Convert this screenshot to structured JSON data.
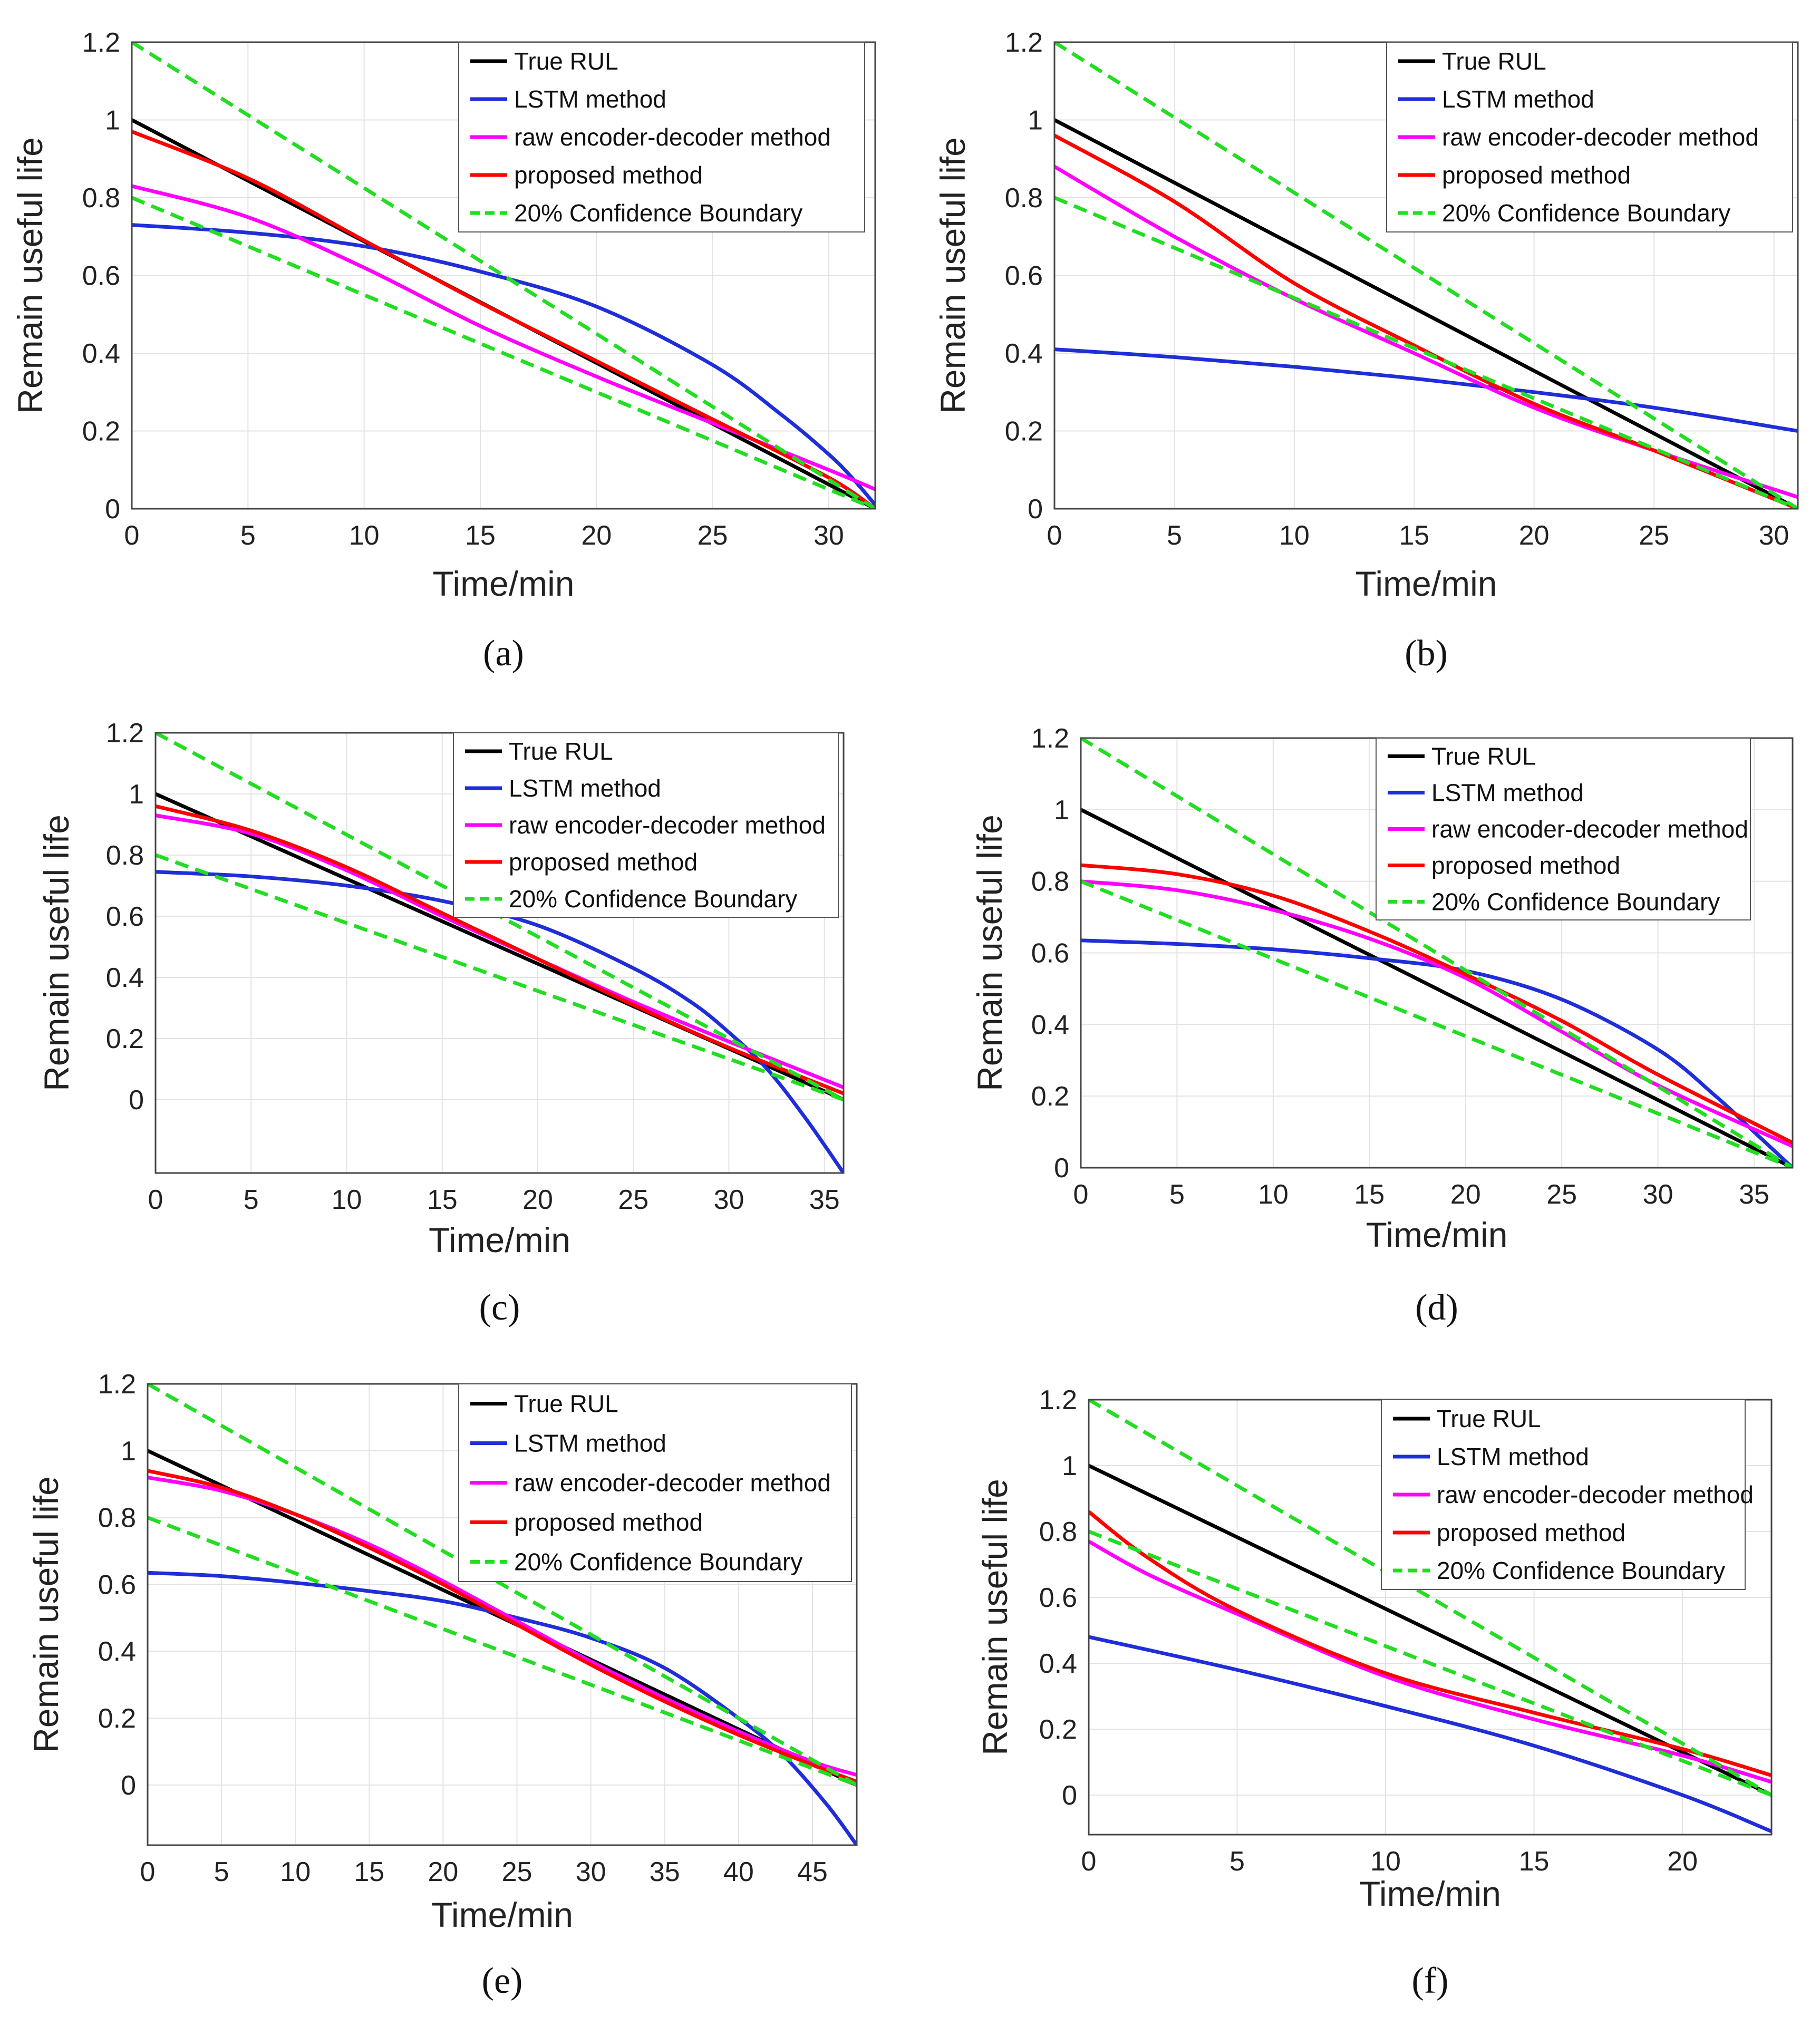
{
  "chart_data": [
    {
      "type": "line",
      "caption": "(a)",
      "xlabel": "Time/min",
      "ylabel": "Remain useful life",
      "xlim": [
        0,
        32
      ],
      "ylim": [
        0,
        1.2
      ],
      "xticks": [
        0,
        5,
        10,
        15,
        20,
        25,
        30
      ],
      "yticks": [
        0,
        0.2,
        0.4,
        0.6,
        0.8,
        1,
        1.2
      ],
      "grid": true,
      "legend_position": "top-right",
      "series": [
        {
          "name": "True RUL",
          "color": "#000000",
          "style": "solid",
          "x": [
            0,
            32
          ],
          "y": [
            1.0,
            0.0
          ]
        },
        {
          "name": "LSTM method",
          "color": "#1f2ed8",
          "style": "solid",
          "x": [
            0,
            5,
            10,
            15,
            20,
            25,
            28,
            30,
            31,
            32
          ],
          "y": [
            0.73,
            0.71,
            0.675,
            0.61,
            0.52,
            0.37,
            0.24,
            0.14,
            0.08,
            0.01
          ]
        },
        {
          "name": "raw encoder-decoder method",
          "color": "#ff00ff",
          "style": "solid",
          "x": [
            0,
            5,
            10,
            15,
            20,
            25,
            30,
            32
          ],
          "y": [
            0.83,
            0.75,
            0.62,
            0.47,
            0.34,
            0.22,
            0.1,
            0.05
          ]
        },
        {
          "name": "proposed method",
          "color": "#ff0000",
          "style": "solid",
          "x": [
            0,
            5,
            10,
            15,
            20,
            25,
            30,
            32
          ],
          "y": [
            0.97,
            0.85,
            0.69,
            0.53,
            0.38,
            0.23,
            0.08,
            0.0
          ]
        },
        {
          "name": "20% Confidence Boundary",
          "color": "#22dd22",
          "style": "dashed",
          "x": [
            0,
            32
          ],
          "y": [
            1.2,
            0.0
          ]
        },
        {
          "name": "",
          "color": "#22dd22",
          "style": "dashed",
          "x": [
            0,
            32
          ],
          "y": [
            0.8,
            0.0
          ]
        }
      ]
    },
    {
      "type": "line",
      "caption": "(b)",
      "xlabel": "Time/min",
      "ylabel": "Remain useful life",
      "xlim": [
        0,
        31
      ],
      "ylim": [
        0,
        1.2
      ],
      "xticks": [
        0,
        5,
        10,
        15,
        20,
        25,
        30
      ],
      "yticks": [
        0,
        0.2,
        0.4,
        0.6,
        0.8,
        1,
        1.2
      ],
      "grid": true,
      "legend_position": "top-right",
      "series": [
        {
          "name": "True RUL",
          "color": "#000000",
          "style": "solid",
          "x": [
            0,
            31
          ],
          "y": [
            1.0,
            0.0
          ]
        },
        {
          "name": "LSTM method",
          "color": "#1f2ed8",
          "style": "solid",
          "x": [
            0,
            5,
            10,
            15,
            20,
            25,
            31
          ],
          "y": [
            0.41,
            0.39,
            0.365,
            0.335,
            0.3,
            0.26,
            0.2
          ]
        },
        {
          "name": "raw encoder-decoder method",
          "color": "#ff00ff",
          "style": "solid",
          "x": [
            0,
            5,
            10,
            15,
            20,
            25,
            31
          ],
          "y": [
            0.88,
            0.7,
            0.54,
            0.4,
            0.26,
            0.15,
            0.03
          ]
        },
        {
          "name": "proposed method",
          "color": "#ff0000",
          "style": "solid",
          "x": [
            0,
            5,
            10,
            15,
            20,
            25,
            31
          ],
          "y": [
            0.96,
            0.79,
            0.58,
            0.42,
            0.27,
            0.15,
            0.0
          ]
        },
        {
          "name": "20% Confidence Boundary",
          "color": "#22dd22",
          "style": "dashed",
          "x": [
            0,
            31
          ],
          "y": [
            1.2,
            0.0
          ]
        },
        {
          "name": "",
          "color": "#22dd22",
          "style": "dashed",
          "x": [
            0,
            31
          ],
          "y": [
            0.8,
            0.0
          ]
        }
      ]
    },
    {
      "type": "line",
      "caption": "(c)",
      "xlabel": "Time/min",
      "ylabel": "Remain useful life",
      "xlim": [
        0,
        36
      ],
      "ylim": [
        -0.24,
        1.2
      ],
      "xticks": [
        0,
        5,
        10,
        15,
        20,
        25,
        30,
        35
      ],
      "yticks": [
        0,
        0.2,
        0.4,
        0.6,
        0.8,
        1,
        1.2
      ],
      "grid": true,
      "legend_position": "top-right",
      "series": [
        {
          "name": "True RUL",
          "color": "#000000",
          "style": "solid",
          "x": [
            0,
            36
          ],
          "y": [
            1.0,
            0.0
          ]
        },
        {
          "name": "LSTM method",
          "color": "#1f2ed8",
          "style": "solid",
          "x": [
            0,
            5,
            10,
            15,
            20,
            25,
            28,
            30,
            32,
            34,
            36
          ],
          "y": [
            0.745,
            0.73,
            0.7,
            0.65,
            0.57,
            0.43,
            0.32,
            0.22,
            0.1,
            -0.06,
            -0.24
          ]
        },
        {
          "name": "raw encoder-decoder method",
          "color": "#ff00ff",
          "style": "solid",
          "x": [
            0,
            5,
            10,
            15,
            20,
            25,
            30,
            36
          ],
          "y": [
            0.93,
            0.87,
            0.75,
            0.6,
            0.46,
            0.32,
            0.19,
            0.04
          ]
        },
        {
          "name": "proposed method",
          "color": "#ff0000",
          "style": "solid",
          "x": [
            0,
            5,
            10,
            15,
            20,
            25,
            30,
            36
          ],
          "y": [
            0.96,
            0.88,
            0.76,
            0.61,
            0.46,
            0.31,
            0.17,
            0.02
          ]
        },
        {
          "name": "20% Confidence Boundary",
          "color": "#22dd22",
          "style": "dashed",
          "x": [
            0,
            36
          ],
          "y": [
            1.2,
            0.0
          ]
        },
        {
          "name": "",
          "color": "#22dd22",
          "style": "dashed",
          "x": [
            0,
            36
          ],
          "y": [
            0.8,
            0.0
          ]
        }
      ]
    },
    {
      "type": "line",
      "caption": "(d)",
      "xlabel": "Time/min",
      "ylabel": "Remain useful life",
      "xlim": [
        0,
        37
      ],
      "ylim": [
        0,
        1.2
      ],
      "xticks": [
        0,
        5,
        10,
        15,
        20,
        25,
        30,
        35
      ],
      "yticks": [
        0,
        0.2,
        0.4,
        0.6,
        0.8,
        1,
        1.2
      ],
      "grid": true,
      "legend_position": "top-right",
      "series": [
        {
          "name": "True RUL",
          "color": "#000000",
          "style": "solid",
          "x": [
            0,
            37
          ],
          "y": [
            1.0,
            0.0
          ]
        },
        {
          "name": "LSTM method",
          "color": "#1f2ed8",
          "style": "solid",
          "x": [
            0,
            5,
            10,
            15,
            20,
            25,
            30,
            33,
            35,
            37
          ],
          "y": [
            0.635,
            0.625,
            0.61,
            0.585,
            0.55,
            0.47,
            0.33,
            0.2,
            0.1,
            0.0
          ]
        },
        {
          "name": "raw encoder-decoder method",
          "color": "#ff00ff",
          "style": "solid",
          "x": [
            0,
            5,
            10,
            15,
            20,
            25,
            30,
            37
          ],
          "y": [
            0.8,
            0.775,
            0.72,
            0.64,
            0.53,
            0.38,
            0.23,
            0.06
          ]
        },
        {
          "name": "proposed method",
          "color": "#ff0000",
          "style": "solid",
          "x": [
            0,
            5,
            10,
            15,
            20,
            25,
            30,
            37
          ],
          "y": [
            0.845,
            0.82,
            0.76,
            0.66,
            0.54,
            0.41,
            0.26,
            0.07
          ]
        },
        {
          "name": "20% Confidence Boundary",
          "color": "#22dd22",
          "style": "dashed",
          "x": [
            0,
            37
          ],
          "y": [
            1.2,
            0.0
          ]
        },
        {
          "name": "",
          "color": "#22dd22",
          "style": "dashed",
          "x": [
            0,
            37
          ],
          "y": [
            0.8,
            0.0
          ]
        }
      ]
    },
    {
      "type": "line",
      "caption": "(e)",
      "xlabel": "Time/min",
      "ylabel": "Remain useful life",
      "xlim": [
        0,
        48
      ],
      "ylim": [
        -0.18,
        1.2
      ],
      "xticks": [
        0,
        5,
        10,
        15,
        20,
        25,
        30,
        35,
        40,
        45
      ],
      "yticks": [
        0,
        0.2,
        0.4,
        0.6,
        0.8,
        1,
        1.2
      ],
      "grid": true,
      "legend_position": "top-right",
      "series": [
        {
          "name": "True RUL",
          "color": "#000000",
          "style": "solid",
          "x": [
            0,
            48
          ],
          "y": [
            1.0,
            0.0
          ]
        },
        {
          "name": "LSTM method",
          "color": "#1f2ed8",
          "style": "solid",
          "x": [
            0,
            5,
            10,
            15,
            20,
            25,
            30,
            35,
            40,
            43,
            46,
            48
          ],
          "y": [
            0.635,
            0.625,
            0.605,
            0.58,
            0.55,
            0.5,
            0.44,
            0.35,
            0.2,
            0.09,
            -0.06,
            -0.18
          ]
        },
        {
          "name": "raw encoder-decoder method",
          "color": "#ff00ff",
          "style": "solid",
          "x": [
            0,
            5,
            10,
            15,
            20,
            25,
            30,
            35,
            40,
            45,
            48
          ],
          "y": [
            0.92,
            0.88,
            0.81,
            0.72,
            0.61,
            0.49,
            0.37,
            0.26,
            0.16,
            0.07,
            0.03
          ]
        },
        {
          "name": "proposed method",
          "color": "#ff0000",
          "style": "solid",
          "x": [
            0,
            5,
            10,
            15,
            20,
            25,
            30,
            35,
            40,
            45,
            48
          ],
          "y": [
            0.94,
            0.89,
            0.81,
            0.71,
            0.6,
            0.48,
            0.36,
            0.25,
            0.15,
            0.06,
            0.01
          ]
        },
        {
          "name": "20% Confidence Boundary",
          "color": "#22dd22",
          "style": "dashed",
          "x": [
            0,
            48
          ],
          "y": [
            1.2,
            0.0
          ]
        },
        {
          "name": "",
          "color": "#22dd22",
          "style": "dashed",
          "x": [
            0,
            48
          ],
          "y": [
            0.8,
            0.0
          ]
        }
      ]
    },
    {
      "type": "line",
      "caption": "(f)",
      "xlabel": "Time/min",
      "ylabel": "Remain useful life",
      "xlim": [
        0,
        23
      ],
      "ylim": [
        -0.12,
        1.2
      ],
      "xticks": [
        0,
        5,
        10,
        15,
        20
      ],
      "yticks": [
        0,
        0.2,
        0.4,
        0.6,
        0.8,
        1,
        1.2
      ],
      "grid": true,
      "legend_position": "top-right",
      "series": [
        {
          "name": "True RUL",
          "color": "#000000",
          "style": "solid",
          "x": [
            0,
            23
          ],
          "y": [
            1.0,
            0.0
          ]
        },
        {
          "name": "LSTM method",
          "color": "#1f2ed8",
          "style": "solid",
          "x": [
            0,
            5,
            10,
            15,
            20,
            23
          ],
          "y": [
            0.48,
            0.38,
            0.27,
            0.15,
            0.0,
            -0.11
          ]
        },
        {
          "name": "raw encoder-decoder method",
          "color": "#ff00ff",
          "style": "solid",
          "x": [
            0,
            2,
            5,
            10,
            15,
            20,
            23
          ],
          "y": [
            0.77,
            0.67,
            0.55,
            0.36,
            0.23,
            0.12,
            0.04
          ]
        },
        {
          "name": "proposed method",
          "color": "#ff0000",
          "style": "solid",
          "x": [
            0,
            2,
            5,
            10,
            15,
            20,
            23
          ],
          "y": [
            0.86,
            0.72,
            0.56,
            0.37,
            0.25,
            0.14,
            0.06
          ]
        },
        {
          "name": "20% Confidence Boundary",
          "color": "#22dd22",
          "style": "dashed",
          "x": [
            0,
            23
          ],
          "y": [
            1.2,
            0.0
          ]
        },
        {
          "name": "",
          "color": "#22dd22",
          "style": "dashed",
          "x": [
            0,
            23
          ],
          "y": [
            0.8,
            0.0
          ]
        }
      ]
    }
  ]
}
